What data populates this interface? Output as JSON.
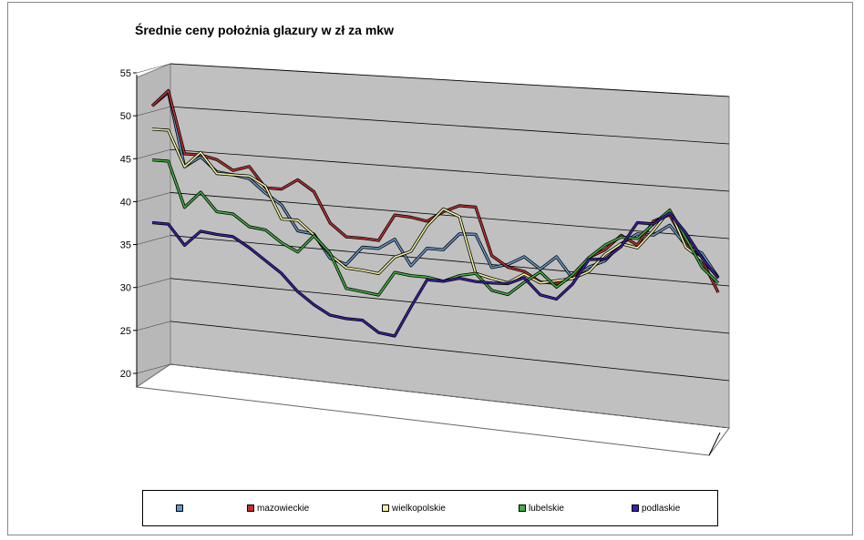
{
  "chart_data": {
    "type": "line",
    "title": "Średnie ceny położnia glazury w zł za mkw",
    "ylim": [
      20,
      55
    ],
    "yticks": [
      "20",
      "25",
      "30",
      "35",
      "40",
      "45",
      "50",
      "55"
    ],
    "grid": true,
    "legend_position": "bottom",
    "series": [
      {
        "name": "",
        "color": "#6699cc",
        "values": [
          50.3,
          52.0,
          43.5,
          44.8,
          43.2,
          43.0,
          42.7,
          41.2,
          40.0,
          37.2,
          37.0,
          34.4,
          33.9,
          36.0,
          36.0,
          37.2,
          34.4,
          36.5,
          36.5,
          38.4,
          38.5,
          35.0,
          35.5,
          36.5,
          35.3,
          36.8,
          34.6,
          36.0,
          36.8,
          38.8,
          40.0,
          40.0,
          41.2,
          39.2,
          38.5,
          36.1
        ]
      },
      {
        "name": "mazowieckie",
        "color": "#c03030",
        "values": [
          50.3,
          52.2,
          45.0,
          45.0,
          44.6,
          43.5,
          44.1,
          41.8,
          41.8,
          43.0,
          41.8,
          38.4,
          37.0,
          37.0,
          36.9,
          39.9,
          39.8,
          39.5,
          40.7,
          41.5,
          41.5,
          36.3,
          35.2,
          34.9,
          33.9,
          33.9,
          34.7,
          37.0,
          38.0,
          39.7,
          38.8,
          41.5,
          42.3,
          39.3,
          37.8,
          34.5
        ]
      },
      {
        "name": "wielkopolskie",
        "color": "#f0f0a0",
        "values": [
          47.6,
          47.6,
          43.5,
          45.3,
          43.0,
          43.0,
          43.0,
          42.0,
          38.4,
          38.4,
          36.9,
          34.8,
          33.5,
          33.4,
          33.2,
          35.2,
          36.0,
          39.0,
          41.0,
          40.3,
          34.2,
          33.8,
          33.5,
          34.6,
          33.8,
          34.2,
          34.6,
          35.5,
          37.5,
          38.8,
          38.5,
          40.5,
          42.8,
          39.0,
          37.8,
          36.1
        ]
      },
      {
        "name": "lubelskie",
        "color": "#40b040",
        "values": [
          44.0,
          44.0,
          38.8,
          40.7,
          38.6,
          38.5,
          37.2,
          37.0,
          35.7,
          34.8,
          36.8,
          35.0,
          31.2,
          31.0,
          30.8,
          33.5,
          33.3,
          33.3,
          33.0,
          33.8,
          34.2,
          32.5,
          32.2,
          33.7,
          35.0,
          33.5,
          35.0,
          37.0,
          38.5,
          39.5,
          39.5,
          41.2,
          42.8,
          40.0,
          37.0,
          35.5
        ]
      },
      {
        "name": "podlaskie",
        "color": "#4020b0",
        "values": [
          36.7,
          36.7,
          34.4,
          36.2,
          36.0,
          35.9,
          34.8,
          33.5,
          32.2,
          30.3,
          29.0,
          28.0,
          27.8,
          27.8,
          26.6,
          26.4,
          29.8,
          33.0,
          33.0,
          33.5,
          33.3,
          33.3,
          33.4,
          34.2,
          32.5,
          32.2,
          34.0,
          36.8,
          37.0,
          38.5,
          41.2,
          41.2,
          42.5,
          40.5,
          38.0,
          36.0
        ]
      }
    ]
  },
  "legend": {
    "items": [
      {
        "label": "",
        "color": "#6699cc"
      },
      {
        "label": "mazowieckie",
        "color": "#c03030"
      },
      {
        "label": "wielkopolskie",
        "color": "#f0f0a0"
      },
      {
        "label": "lubelskie",
        "color": "#40b040"
      },
      {
        "label": "podlaskie",
        "color": "#4020b0"
      }
    ]
  }
}
